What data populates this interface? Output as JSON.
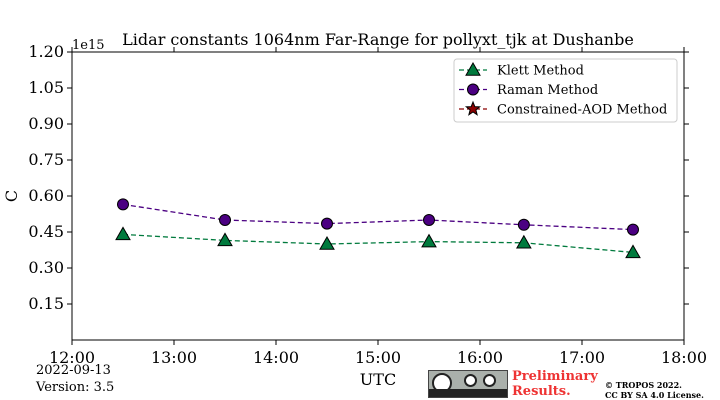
{
  "chart_data": {
    "type": "line",
    "title": "Lidar constants 1064nm Far-Range for pollyxt_tjk at Dushanbe",
    "xlabel": "UTC",
    "ylabel": "C",
    "y_multiplier": "1e15",
    "xlim": [
      12,
      18
    ],
    "ylim": [
      0,
      1.2
    ],
    "x_ticks": [
      {
        "value": 12,
        "label": "12:00"
      },
      {
        "value": 13,
        "label": "13:00"
      },
      {
        "value": 14,
        "label": "14:00"
      },
      {
        "value": 15,
        "label": "15:00"
      },
      {
        "value": 16,
        "label": "16:00"
      },
      {
        "value": 17,
        "label": "17:00"
      },
      {
        "value": 18,
        "label": "18:00"
      }
    ],
    "y_ticks": [
      {
        "value": 0.15,
        "label": "0.15"
      },
      {
        "value": 0.3,
        "label": "0.30"
      },
      {
        "value": 0.45,
        "label": "0.45"
      },
      {
        "value": 0.6,
        "label": "0.60"
      },
      {
        "value": 0.75,
        "label": "0.75"
      },
      {
        "value": 0.9,
        "label": "0.90"
      },
      {
        "value": 1.05,
        "label": "1.05"
      },
      {
        "value": 1.2,
        "label": "1.20"
      }
    ],
    "legend_position": "top-right",
    "series": [
      {
        "name": "Klett Method",
        "marker": "triangle",
        "color": "#007a3d",
        "x": [
          12.5,
          13.5,
          14.5,
          15.5,
          16.43,
          17.5
        ],
        "y": [
          0.44,
          0.415,
          0.4,
          0.41,
          0.405,
          0.365
        ]
      },
      {
        "name": "Raman Method",
        "marker": "circle",
        "color": "#4b0082",
        "x": [
          12.5,
          13.5,
          14.5,
          15.5,
          16.43,
          17.5
        ],
        "y": [
          0.565,
          0.5,
          0.485,
          0.5,
          0.48,
          0.46
        ]
      },
      {
        "name": "Constrained-AOD Method",
        "marker": "star",
        "color": "#8b0000",
        "x": [],
        "y": []
      }
    ]
  },
  "footer": {
    "date": "2022-09-13",
    "version": "Version: 3.5",
    "preliminary": "Preliminary\nResults.",
    "copyright": "© TROPOS 2022.\nCC BY SA 4.0 License."
  }
}
